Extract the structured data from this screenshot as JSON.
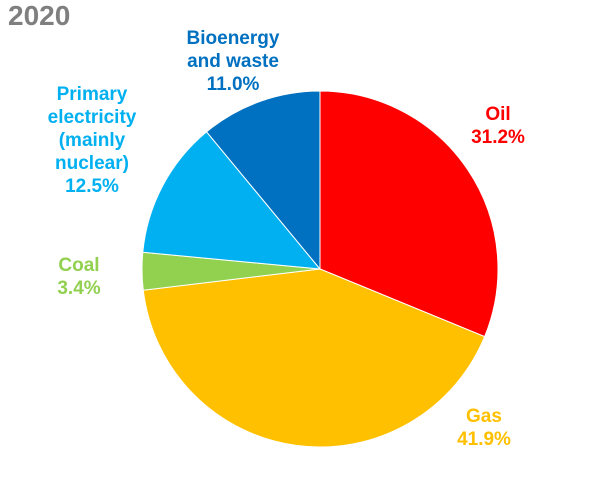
{
  "chart_data": {
    "type": "pie",
    "title": "2020",
    "slices": [
      {
        "lines": [
          "Oil"
        ],
        "pct": "31.2%",
        "value": 31.2,
        "color": "#ff0000"
      },
      {
        "lines": [
          "Gas"
        ],
        "pct": "41.9%",
        "value": 41.9,
        "color": "#ffc000"
      },
      {
        "lines": [
          "Coal"
        ],
        "pct": "3.4%",
        "value": 3.4,
        "color": "#92d050"
      },
      {
        "lines": [
          "Primary",
          "electricity",
          "(mainly",
          "nuclear)"
        ],
        "pct": "12.5%",
        "value": 12.5,
        "color": "#00b0f0"
      },
      {
        "lines": [
          "Bioenergy",
          "and waste"
        ],
        "pct": "11.0%",
        "value": 11.0,
        "color": "#0070c0"
      }
    ],
    "label_colors": [
      "#ff0000",
      "#ffc000",
      "#92d050",
      "#00b0f0",
      "#0070c0"
    ],
    "start_angle_deg": 0,
    "direction": "clockwise"
  }
}
